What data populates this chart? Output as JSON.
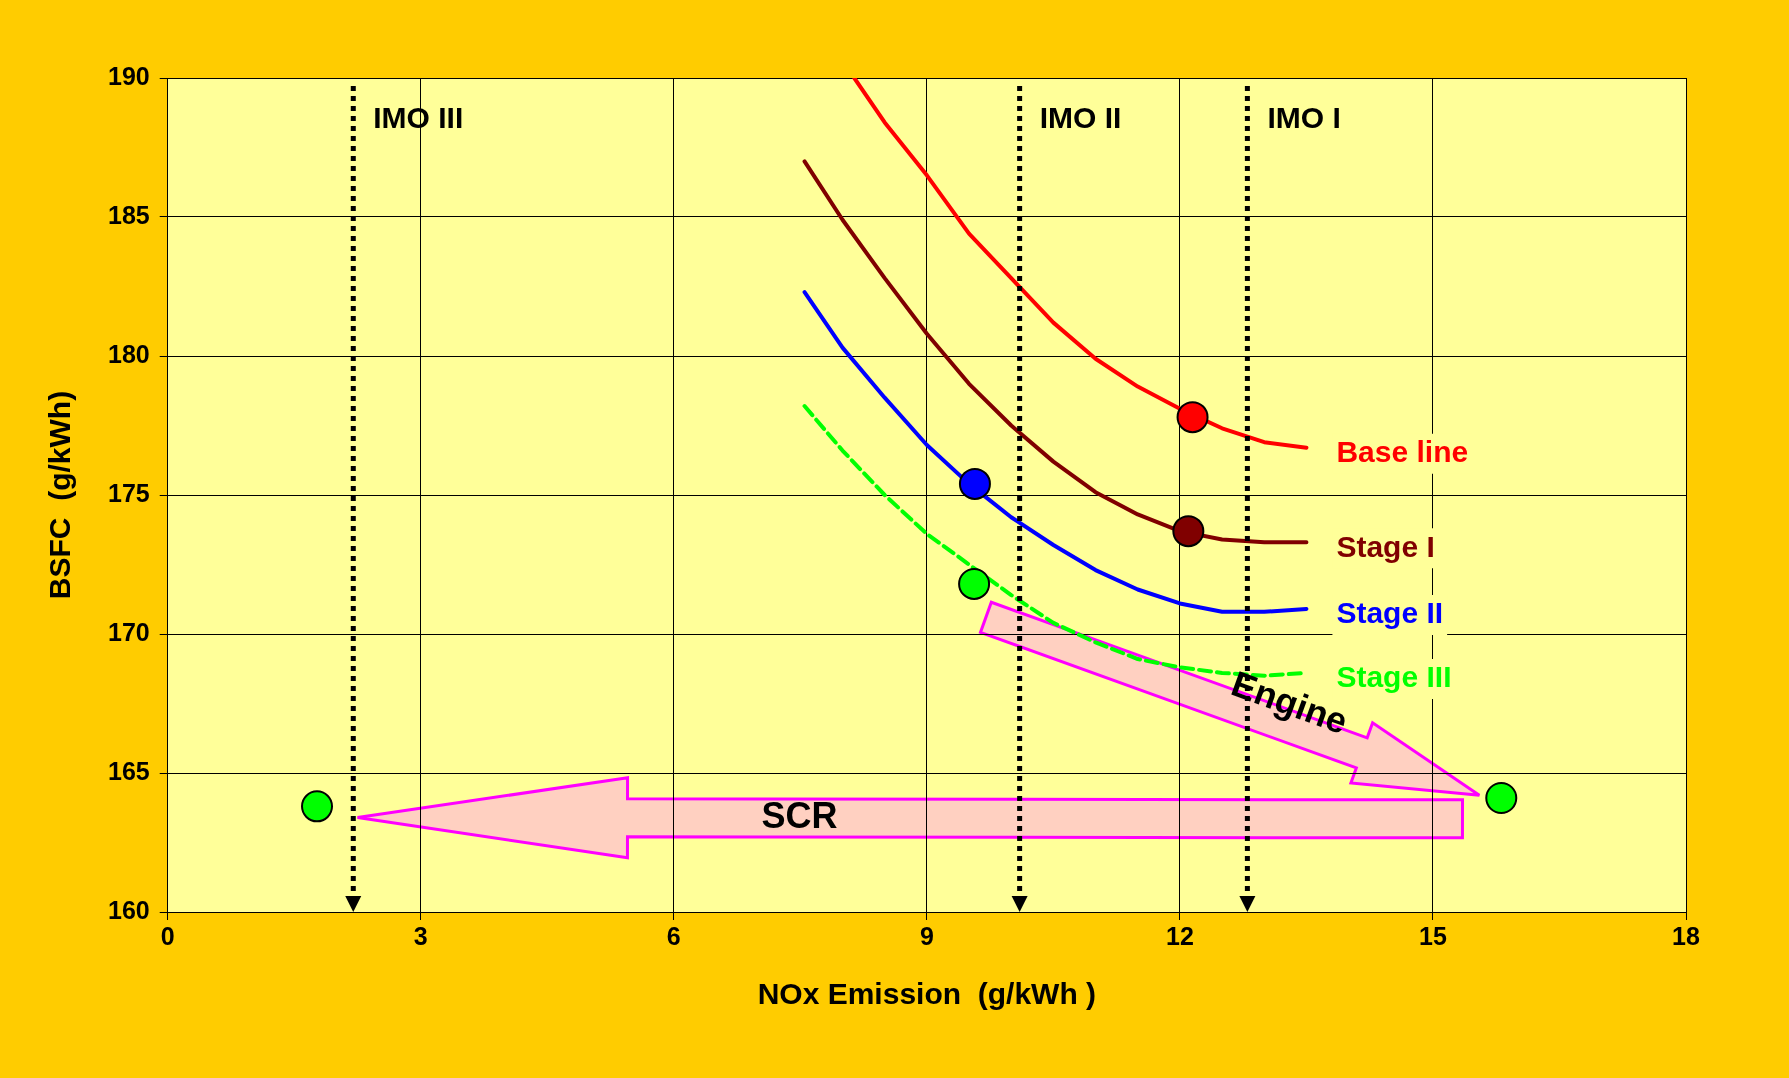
{
  "chart_data": {
    "type": "line",
    "xlabel": "NOx Emission  (g/kWh )",
    "ylabel": "BSFC  (g/kWh)",
    "xlim": [
      0,
      18
    ],
    "xticks": [
      0,
      3,
      6,
      9,
      12,
      15,
      18
    ],
    "ylim": [
      160,
      190
    ],
    "yticks": [
      160,
      165,
      170,
      175,
      180,
      185,
      190
    ],
    "grid": true,
    "legend": false,
    "marker": "none",
    "series": [
      {
        "name": "Base line",
        "color": "#ff0000",
        "x": [
          8.14,
          8.5,
          9,
          9.5,
          10,
          10.5,
          11,
          11.5,
          12,
          12.5,
          13,
          13.5
        ],
        "values": [
          190,
          188.4,
          186.5,
          184.4,
          182.8,
          181.2,
          179.9,
          178.9,
          178.1,
          177.4,
          176.9,
          176.7
        ]
      },
      {
        "name": "Stage I",
        "color": "#800000",
        "x": [
          7.55,
          8,
          8.5,
          9,
          9.5,
          10,
          10.5,
          11,
          11.5,
          12,
          12.5,
          13,
          13.5
        ],
        "values": [
          187,
          184.9,
          182.8,
          180.8,
          179,
          177.5,
          176.2,
          175.1,
          174.3,
          173.7,
          173.4,
          173.3,
          173.3
        ]
      },
      {
        "name": "Stage II",
        "color": "#0000ff",
        "x": [
          7.55,
          8,
          8.5,
          9,
          9.5,
          10,
          10.5,
          11,
          11.5,
          12,
          12.5,
          13,
          13.5
        ],
        "values": [
          182.3,
          180.3,
          178.5,
          176.8,
          175.4,
          174.2,
          173.2,
          172.3,
          171.6,
          171.1,
          170.8,
          170.8,
          170.9
        ]
      },
      {
        "name": "Stage III",
        "color": "#00ff00",
        "line_style": "dashed",
        "x": [
          7.55,
          8,
          8.5,
          9,
          9.5,
          10,
          10.5,
          11,
          11.5,
          12,
          12.5,
          13,
          13.5
        ],
        "values": [
          178.2,
          176.6,
          175,
          173.6,
          172.5,
          171.4,
          170.4,
          169.7,
          169.1,
          168.8,
          168.6,
          168.5,
          168.6
        ]
      },
      {
        "type": "scatter",
        "marker": "circle",
        "color": "#ff0000",
        "x": [
          12.15
        ],
        "values": [
          177.8
        ]
      },
      {
        "type": "scatter",
        "marker": "circle",
        "color": "#800000",
        "x": [
          12.1
        ],
        "values": [
          173.7
        ]
      },
      {
        "type": "scatter",
        "marker": "circle",
        "color": "#0000ff",
        "x": [
          9.57
        ],
        "values": [
          175.4
        ]
      },
      {
        "type": "scatter",
        "marker": "circle",
        "color": "#00ff00",
        "x": [
          9.56,
          1.77,
          15.81
        ],
        "values": [
          171.8,
          163.8,
          164.1
        ]
      }
    ],
    "ref_lines": [
      {
        "axis": "x",
        "value": 2.2,
        "label": "IMO III",
        "color": "#000000",
        "line_style": "dotted"
      },
      {
        "axis": "x",
        "value": 10.1,
        "label": "IMO II",
        "color": "#000000",
        "line_style": "dotted"
      },
      {
        "axis": "x",
        "value": 12.8,
        "label": "IMO I",
        "color": "#000000",
        "line_style": "dotted"
      }
    ],
    "annotations": [
      "SCR",
      "Engine"
    ]
  }
}
